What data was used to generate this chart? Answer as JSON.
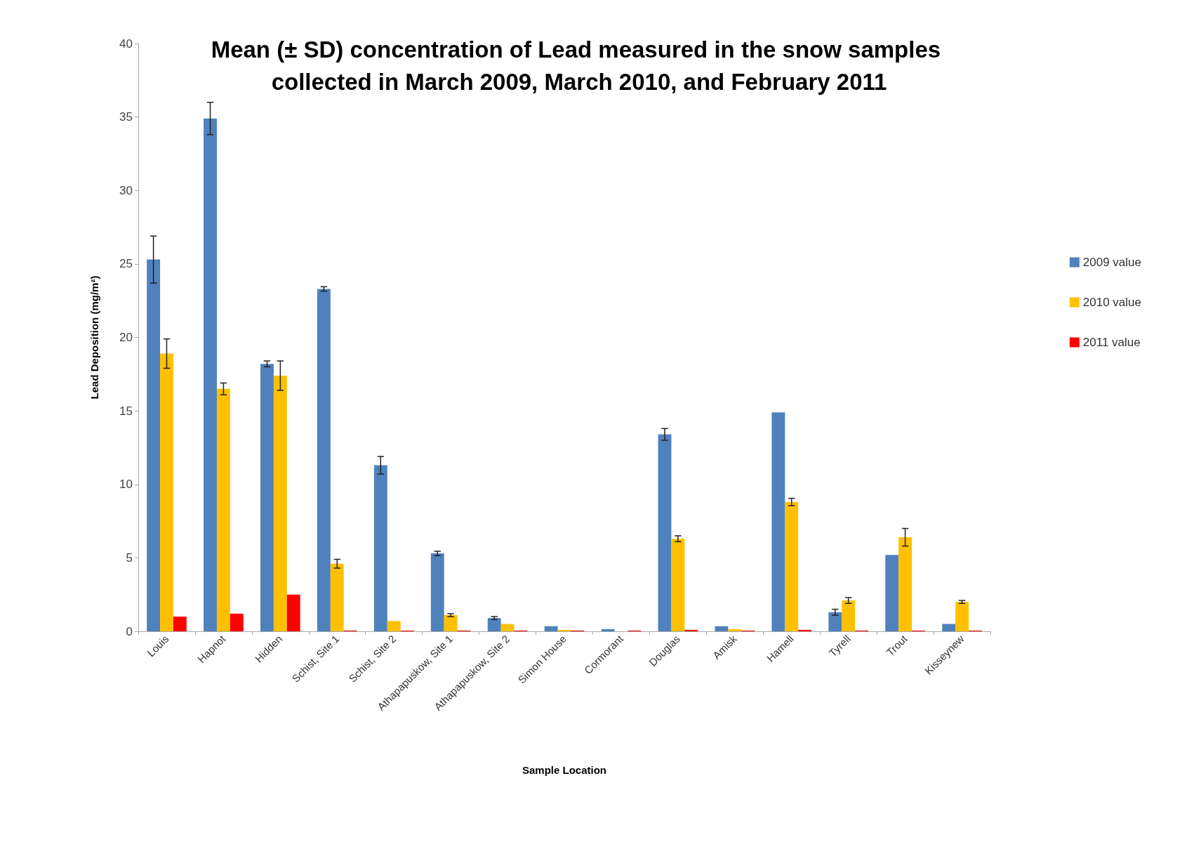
{
  "chart_data": {
    "type": "bar",
    "title": "Mean (± SD) concentration of Lead measured in the snow samples collected in March 2009, March 2010, and February 2011",
    "xlabel": "Sample Location",
    "ylabel": "Lead Deposition (mg/m²)",
    "categories": [
      "Louis",
      "Hapnot",
      "Hidden",
      "Schist, Site 1",
      "Schist, Site 2",
      "Athapapuskow, Site 1",
      "Athapapuskow, Site 2",
      "Simon House",
      "Cormorant",
      "Douglas",
      "Amisk",
      "Hamell",
      "Tyrell",
      "Trout",
      "Kisseynew"
    ],
    "series": [
      {
        "name": "2009 value",
        "color": "#4f81bd",
        "values": [
          25.3,
          34.9,
          18.2,
          23.3,
          11.3,
          5.3,
          0.9,
          0.35,
          0.15,
          13.4,
          0.35,
          14.9,
          1.3,
          5.2,
          0.5
        ],
        "errors": [
          1.6,
          1.1,
          0.2,
          0.15,
          0.6,
          0.15,
          0.1,
          null,
          null,
          0.4,
          null,
          null,
          0.2,
          null,
          null
        ]
      },
      {
        "name": "2010 value",
        "color": "#ffc000",
        "values": [
          18.9,
          16.5,
          17.4,
          4.6,
          0.7,
          1.1,
          0.5,
          0.1,
          0,
          6.3,
          0.15,
          8.8,
          2.1,
          6.4,
          2.0
        ],
        "errors": [
          1.0,
          0.4,
          1.0,
          0.3,
          null,
          0.1,
          null,
          null,
          null,
          0.2,
          null,
          0.25,
          0.2,
          0.6,
          0.1
        ]
      },
      {
        "name": "2011 value",
        "color": "#ff0000",
        "values": [
          1.0,
          1.2,
          2.5,
          0.05,
          0.05,
          0.05,
          0.05,
          0.05,
          0.05,
          0.1,
          0.05,
          0.1,
          0.05,
          0.05,
          0.05
        ]
      }
    ],
    "ylim": [
      0,
      40
    ],
    "yticks": [
      0,
      5,
      10,
      15,
      20,
      25,
      30,
      35,
      40
    ],
    "grid": false,
    "legend": "right"
  }
}
